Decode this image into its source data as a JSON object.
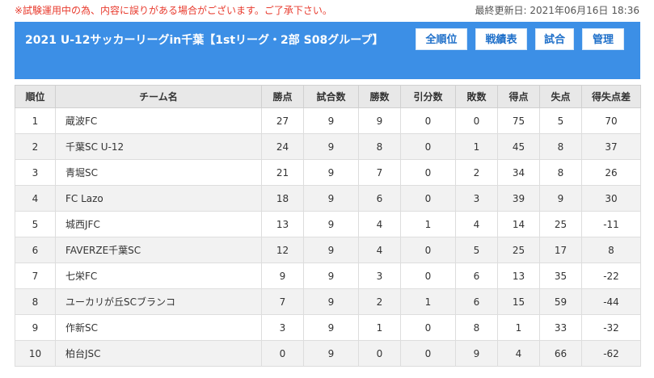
{
  "notice": "※試験運用中の為、内容に誤りがある場合がございます。ご了承下さい。",
  "last_updated": {
    "label": "最終更新日: 2021年06月16日",
    "time": "18:36"
  },
  "header": {
    "title": "2021 U-12サッカーリーグin千葉【1stリーグ・2部 S08グループ】",
    "buttons": {
      "all_ranks": "全順位",
      "results": "戦績表",
      "matches": "試合",
      "admin": "管理"
    }
  },
  "table": {
    "columns": [
      "順位",
      "チーム名",
      "勝点",
      "試合数",
      "勝数",
      "引分数",
      "敗数",
      "得点",
      "失点",
      "得失点差"
    ],
    "rows": [
      [
        "1",
        "蔵波FC",
        "27",
        "9",
        "9",
        "0",
        "0",
        "75",
        "5",
        "70"
      ],
      [
        "2",
        "千葉SC U-12",
        "24",
        "9",
        "8",
        "0",
        "1",
        "45",
        "8",
        "37"
      ],
      [
        "3",
        "青堀SC",
        "21",
        "9",
        "7",
        "0",
        "2",
        "34",
        "8",
        "26"
      ],
      [
        "4",
        "FC Lazo",
        "18",
        "9",
        "6",
        "0",
        "3",
        "39",
        "9",
        "30"
      ],
      [
        "5",
        "城西JFC",
        "13",
        "9",
        "4",
        "1",
        "4",
        "14",
        "25",
        "-11"
      ],
      [
        "6",
        "FAVERZE千葉SC",
        "12",
        "9",
        "4",
        "0",
        "5",
        "25",
        "17",
        "8"
      ],
      [
        "7",
        "七栄FC",
        "9",
        "9",
        "3",
        "0",
        "6",
        "13",
        "35",
        "-22"
      ],
      [
        "8",
        "ユーカリが丘SCブランコ",
        "7",
        "9",
        "2",
        "1",
        "6",
        "15",
        "59",
        "-44"
      ],
      [
        "9",
        "作新SC",
        "3",
        "9",
        "1",
        "0",
        "8",
        "1",
        "33",
        "-32"
      ],
      [
        "10",
        "柏台JSC",
        "0",
        "9",
        "0",
        "0",
        "9",
        "4",
        "66",
        "-62"
      ]
    ]
  },
  "colors": {
    "header_bg": "#3c8fe6",
    "notice_red": "#e83b2e",
    "button_text": "#1e6fc9",
    "th_bg": "#e8e8e8",
    "row_alt_bg": "#f2f2f2"
  }
}
